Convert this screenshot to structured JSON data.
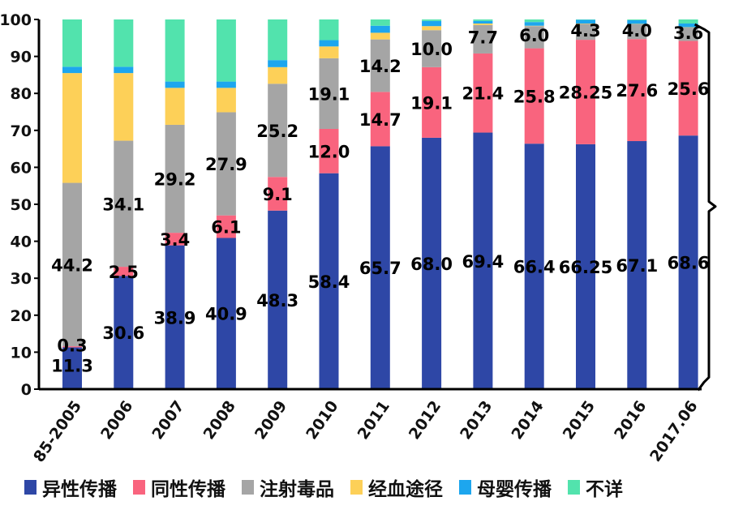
{
  "chart_data": {
    "type": "bar",
    "stacked": true,
    "title": "",
    "xlabel": "",
    "ylabel": "",
    "ylim": [
      0,
      100
    ],
    "yticks": [
      0,
      10,
      20,
      30,
      40,
      50,
      60,
      70,
      80,
      90,
      100
    ],
    "categories": [
      "85-2005",
      "2006",
      "2007",
      "2008",
      "2009",
      "2010",
      "2011",
      "2012",
      "2013",
      "2014",
      "2015",
      "2016",
      "2017.06"
    ],
    "series": [
      {
        "name": "异性传播",
        "color": "#2e47a6",
        "values": [
          11.3,
          30.6,
          38.9,
          40.9,
          48.3,
          58.4,
          65.7,
          68.0,
          69.4,
          66.4,
          66.25,
          67.1,
          68.6
        ],
        "labels": [
          "11.3",
          "30.6",
          "38.9",
          "40.9",
          "48.3",
          "58.4",
          "65.7",
          "68.0",
          "69.4",
          "66.4",
          "66.25",
          "67.1",
          "68.6"
        ]
      },
      {
        "name": "同性传播",
        "color": "#f9647e",
        "values": [
          0.3,
          2.5,
          3.4,
          6.1,
          9.1,
          12.0,
          14.7,
          19.1,
          21.4,
          25.8,
          28.25,
          27.6,
          25.6
        ],
        "labels": [
          "0.3",
          "2.5",
          "3.4",
          "6.1",
          "9.1",
          "12.0",
          "14.7",
          "19.1",
          "21.4",
          "25.8",
          "28.25",
          "27.6",
          "25.6"
        ]
      },
      {
        "name": "注射毒品",
        "color": "#a5a5a5",
        "values": [
          44.2,
          34.1,
          29.2,
          27.9,
          25.2,
          19.1,
          14.2,
          10.0,
          7.7,
          6.0,
          4.3,
          4.0,
          3.6
        ],
        "labels": [
          "44.2",
          "34.1",
          "29.2",
          "27.9",
          "25.2",
          "19.1",
          "14.2",
          "10.0",
          "7.7",
          "6.0",
          "4.3",
          "4.0",
          "3.6"
        ]
      },
      {
        "name": "经血途径",
        "color": "#fdd058",
        "values": [
          29.7,
          18.3,
          10.0,
          6.6,
          4.5,
          3.2,
          1.8,
          1.1,
          0.4,
          0.1,
          0.1,
          0.1,
          0.1
        ]
      },
      {
        "name": "母婴传播",
        "color": "#1da6ee",
        "values": [
          1.7,
          1.7,
          1.7,
          1.7,
          1.9,
          1.7,
          1.9,
          1.4,
          0.7,
          1.0,
          1.0,
          1.0,
          1.0
        ]
      },
      {
        "name": "不详",
        "color": "#52e3ad",
        "values": [
          12.8,
          12.8,
          16.8,
          16.8,
          11.0,
          5.6,
          1.7,
          0.4,
          0.4,
          0.7,
          0.1,
          0.2,
          1.1
        ]
      }
    ],
    "annotations": [
      {
        "type": "brace",
        "target": "2017.06",
        "note": "right-side curly brace spanning 0 to ~97.8 (异性+同性+注射毒品)"
      }
    ],
    "grid": false,
    "legend_position": "bottom"
  },
  "legend": [
    {
      "label": "异性传播",
      "color": "#2e47a6"
    },
    {
      "label": "同性传播",
      "color": "#f9647e"
    },
    {
      "label": "注射毒品",
      "color": "#a5a5a5"
    },
    {
      "label": "经血途径",
      "color": "#fdd058"
    },
    {
      "label": "母婴传播",
      "color": "#1da6ee"
    },
    {
      "label": "不详",
      "color": "#52e3ad"
    }
  ]
}
